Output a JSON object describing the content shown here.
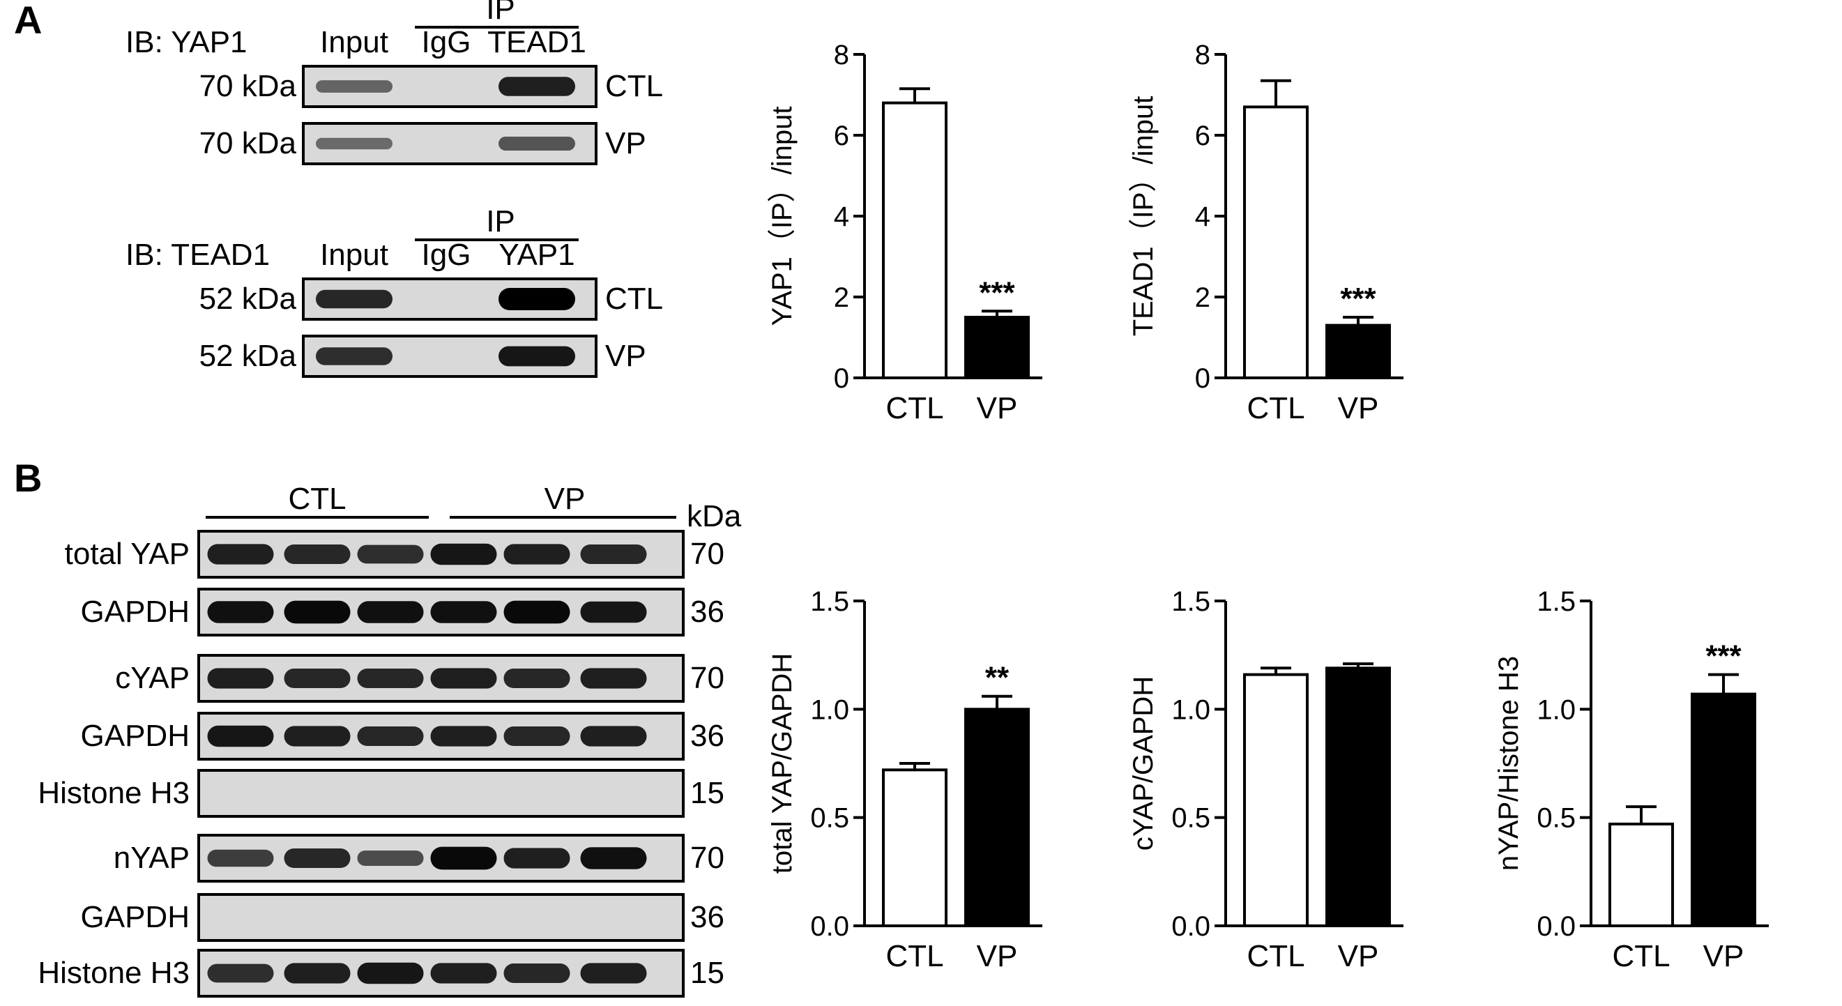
{
  "panel_a": {
    "letter": "A",
    "blot1": {
      "ib_label": "IB: YAP1",
      "lane_labels": [
        "Input",
        "IgG",
        "TEAD1"
      ],
      "ip_label": "IP",
      "rows": [
        {
          "size": "70 kDa",
          "condition": "CTL",
          "bands": [
            0.35,
            0.0,
            0.8
          ]
        },
        {
          "size": "70 kDa",
          "condition": "VP",
          "bands": [
            0.3,
            0.0,
            0.45
          ]
        }
      ]
    },
    "blot2": {
      "ib_label": "IB: TEAD1",
      "lane_labels": [
        "Input",
        "IgG",
        "YAP1"
      ],
      "ip_label": "IP",
      "rows": [
        {
          "size": "52 kDa",
          "condition": "CTL",
          "bands": [
            0.75,
            0.0,
            1.0
          ]
        },
        {
          "size": "52 kDa",
          "condition": "VP",
          "bands": [
            0.7,
            0.0,
            0.85
          ]
        }
      ]
    }
  },
  "panel_b": {
    "letter": "B",
    "group_labels": [
      "CTL",
      "VP"
    ],
    "unit_label": "kDa",
    "rows": [
      {
        "label": "total YAP",
        "size": "70",
        "bands": [
          0.8,
          0.75,
          0.7,
          0.85,
          0.8,
          0.75
        ]
      },
      {
        "label": "GAPDH",
        "size": "36",
        "bands": [
          0.9,
          0.95,
          0.9,
          0.9,
          0.95,
          0.85
        ]
      },
      {
        "label": "cYAP",
        "size": "70",
        "bands": [
          0.8,
          0.75,
          0.75,
          0.8,
          0.75,
          0.8
        ]
      },
      {
        "label": "GAPDH",
        "size": "36",
        "bands": [
          0.85,
          0.8,
          0.75,
          0.8,
          0.75,
          0.8
        ]
      },
      {
        "label": "Histone H3",
        "size": "15",
        "bands": [
          0,
          0,
          0,
          0,
          0,
          0
        ]
      },
      {
        "label": "nYAP",
        "size": "70",
        "bands": [
          0.6,
          0.75,
          0.5,
          0.95,
          0.8,
          0.9
        ]
      },
      {
        "label": "GAPDH",
        "size": "36",
        "bands": [
          0,
          0,
          0,
          0,
          0,
          0
        ]
      },
      {
        "label": "Histone H3",
        "size": "15",
        "bands": [
          0.7,
          0.8,
          0.85,
          0.8,
          0.75,
          0.8
        ]
      }
    ]
  },
  "chart_data": [
    {
      "type": "bar",
      "categories": [
        "CTL",
        "VP"
      ],
      "values": [
        6.8,
        1.5
      ],
      "errors": [
        0.35,
        0.15
      ],
      "ylabel": "YAP1（IP）/input",
      "ylim": [
        0,
        8
      ],
      "yticks": [
        "0",
        "2",
        "4",
        "6",
        "8"
      ],
      "significance": [
        "",
        "***"
      ],
      "colors": [
        "#ffffff",
        "#000000"
      ]
    },
    {
      "type": "bar",
      "categories": [
        "CTL",
        "VP"
      ],
      "values": [
        6.7,
        1.3
      ],
      "errors": [
        0.65,
        0.2
      ],
      "ylabel": "TEAD1（IP）/input",
      "ylim": [
        0,
        8
      ],
      "yticks": [
        "0",
        "2",
        "4",
        "6",
        "8"
      ],
      "significance": [
        "",
        "***"
      ],
      "colors": [
        "#ffffff",
        "#000000"
      ]
    },
    {
      "type": "bar",
      "categories": [
        "CTL",
        "VP"
      ],
      "values": [
        0.72,
        1.0
      ],
      "errors": [
        0.03,
        0.06
      ],
      "ylabel": "total YAP/GAPDH",
      "ylim": [
        0,
        1.5
      ],
      "yticks": [
        "0.0",
        "0.5",
        "1.0",
        "1.5"
      ],
      "significance": [
        "",
        "**"
      ],
      "colors": [
        "#ffffff",
        "#000000"
      ]
    },
    {
      "type": "bar",
      "categories": [
        "CTL",
        "VP"
      ],
      "values": [
        1.16,
        1.19
      ],
      "errors": [
        0.03,
        0.02
      ],
      "ylabel": "cYAP/GAPDH",
      "ylim": [
        0,
        1.5
      ],
      "yticks": [
        "0.0",
        "0.5",
        "1.0",
        "1.5"
      ],
      "significance": [
        "",
        ""
      ],
      "colors": [
        "#ffffff",
        "#000000"
      ]
    },
    {
      "type": "bar",
      "categories": [
        "CTL",
        "VP"
      ],
      "values": [
        0.47,
        1.07
      ],
      "errors": [
        0.08,
        0.09
      ],
      "ylabel": "nYAP/Histone H3",
      "ylim": [
        0,
        1.5
      ],
      "yticks": [
        "0.0",
        "0.5",
        "1.0",
        "1.5"
      ],
      "significance": [
        "",
        "***"
      ],
      "colors": [
        "#ffffff",
        "#000000"
      ]
    }
  ]
}
